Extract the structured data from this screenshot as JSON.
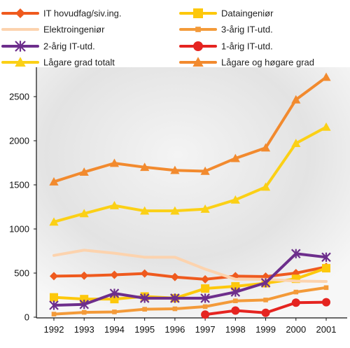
{
  "chart_data": {
    "type": "line",
    "title": "",
    "xlabel": "",
    "ylabel": "",
    "x": [
      1992,
      1993,
      1994,
      1995,
      1996,
      1997,
      1998,
      1999,
      2000,
      2001
    ],
    "ylim": [
      0,
      2800
    ],
    "yticks": [
      0,
      500,
      1000,
      1500,
      2000,
      2500
    ],
    "grid": false,
    "legend_position": "top",
    "series": [
      {
        "name": "IT hovudfag/siv.ing.",
        "color": "#ef5a1e",
        "marker": "diamond",
        "x": [
          1992,
          1993,
          1994,
          1995,
          1996,
          1997,
          1998,
          1999,
          2000,
          2001
        ],
        "values": [
          465,
          470,
          480,
          495,
          455,
          430,
          465,
          460,
          500,
          570
        ]
      },
      {
        "name": "Dataingeniør",
        "color": "#fdc80b",
        "marker": "square",
        "x": [
          1992,
          1993,
          1994,
          1995,
          1996,
          1997,
          1998,
          1999,
          2000,
          2001
        ],
        "values": [
          225,
          205,
          205,
          235,
          215,
          325,
          350,
          385,
          435,
          555
        ]
      },
      {
        "name": "Elektroingeniør",
        "color": "#fcd3ae",
        "marker": "none",
        "x": [
          1992,
          1993,
          1994,
          1995,
          1996,
          1997,
          1998,
          1999,
          2000,
          2001
        ],
        "values": [
          700,
          760,
          725,
          680,
          680,
          545,
          430,
          430,
          410,
          405
        ]
      },
      {
        "name": "3-årig IT-utd.",
        "color": "#f39a39",
        "marker": "small-square",
        "x": [
          1992,
          1993,
          1994,
          1995,
          1996,
          1997,
          1998,
          1999,
          2000,
          2001
        ],
        "values": [
          35,
          55,
          60,
          90,
          95,
          120,
          185,
          195,
          285,
          335
        ]
      },
      {
        "name": "2-årig IT-utd.",
        "color": "#6d2e8c",
        "marker": "star",
        "x": [
          1992,
          1993,
          1994,
          1995,
          1996,
          1997,
          1998,
          1999,
          2000,
          2001
        ],
        "values": [
          135,
          145,
          270,
          215,
          215,
          215,
          285,
          390,
          720,
          680
        ]
      },
      {
        "name": "1-årig IT-utd.",
        "color": "#e52420",
        "marker": "circle",
        "x": [
          1997,
          1998,
          1999,
          2000,
          2001
        ],
        "values": [
          30,
          75,
          50,
          165,
          170
        ]
      },
      {
        "name": "Lågare grad totalt",
        "color": "#fbd016",
        "marker": "triangle",
        "x": [
          1992,
          1993,
          1994,
          1995,
          1996,
          1997,
          1998,
          1999,
          2000,
          2001
        ],
        "values": [
          1080,
          1175,
          1265,
          1205,
          1205,
          1225,
          1330,
          1475,
          1970,
          2155
        ]
      },
      {
        "name": "Lågare og høgare grad",
        "color": "#f28a2e",
        "marker": "triangle",
        "x": [
          1992,
          1993,
          1994,
          1995,
          1996,
          1997,
          1998,
          1999,
          2000,
          2001
        ],
        "values": [
          1535,
          1645,
          1745,
          1700,
          1665,
          1655,
          1800,
          1920,
          2465,
          2720
        ]
      }
    ]
  }
}
